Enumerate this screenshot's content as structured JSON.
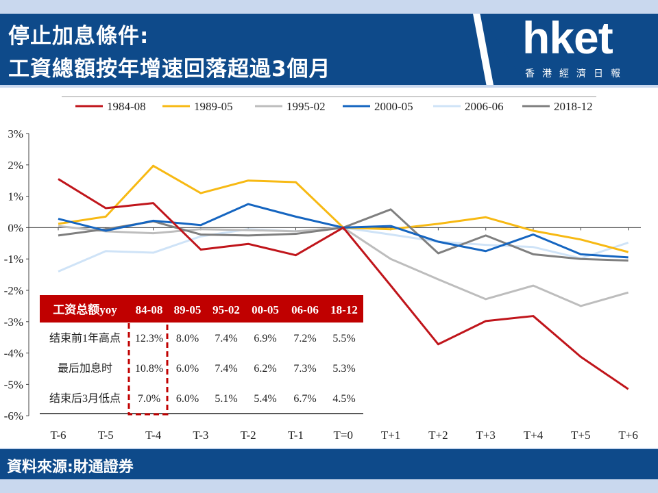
{
  "header": {
    "title_line1": "停止加息條件:",
    "title_line2": "工資總額按年增速回落超過3個月",
    "logo_text": "hket",
    "logo_sub": "香港經濟日報"
  },
  "footer": {
    "source": "資料來源:財通證券"
  },
  "colors": {
    "banner": "#0e4a8a",
    "table_header": "#c00000"
  },
  "chart_data": {
    "type": "line",
    "categories": [
      "T-6",
      "T-5",
      "T-4",
      "T-3",
      "T-2",
      "T-1",
      "T=0",
      "T+1",
      "T+2",
      "T+3",
      "T+4",
      "T+5",
      "T+6"
    ],
    "y_ticks": [
      "3%",
      "2%",
      "1%",
      "0%",
      "-1%",
      "-2%",
      "-3%",
      "-4%",
      "-5%",
      "-6%"
    ],
    "ylim": [
      -6,
      3
    ],
    "legend_position": "top",
    "grid": false,
    "series": [
      {
        "name": "1984-08",
        "color": "#c0151b",
        "values": [
          1.55,
          0.62,
          0.78,
          -0.7,
          -0.52,
          -0.88,
          0.0,
          -1.85,
          -3.72,
          -2.98,
          -2.82,
          -4.12,
          -5.15
        ]
      },
      {
        "name": "1989-05",
        "color": "#f7b913",
        "values": [
          0.12,
          0.35,
          1.97,
          1.1,
          1.5,
          1.45,
          0.0,
          -0.05,
          0.12,
          0.33,
          -0.1,
          -0.38,
          -0.78
        ]
      },
      {
        "name": "1995-02",
        "color": "#bdbdbd",
        "values": [
          0.05,
          -0.12,
          -0.18,
          -0.05,
          -0.08,
          -0.12,
          0.0,
          -1.0,
          -1.65,
          -2.28,
          -1.85,
          -2.5,
          -2.07
        ]
      },
      {
        "name": "2000-05",
        "color": "#1565c0",
        "values": [
          0.28,
          -0.1,
          0.22,
          0.08,
          0.75,
          0.35,
          0.0,
          0.05,
          -0.45,
          -0.75,
          -0.22,
          -0.85,
          -0.95
        ]
      },
      {
        "name": "2006-06",
        "color": "#cfe3f7",
        "values": [
          -1.4,
          -0.75,
          -0.8,
          -0.28,
          -0.05,
          -0.12,
          0.0,
          -0.22,
          -0.45,
          -0.55,
          -0.62,
          -0.98,
          -0.48
        ]
      },
      {
        "name": "2018-12",
        "color": "#7f7f7f",
        "values": [
          -0.25,
          -0.05,
          0.2,
          -0.22,
          -0.25,
          -0.2,
          0.0,
          0.58,
          -0.82,
          -0.25,
          -0.85,
          -1.0,
          -1.05
        ]
      }
    ],
    "table": {
      "header": [
        "工资总额yoy",
        "84-08",
        "89-05",
        "95-02",
        "00-05",
        "06-06",
        "18-12"
      ],
      "rows": [
        [
          "结束前1年高点",
          "12.3%",
          "8.0%",
          "7.4%",
          "6.9%",
          "7.2%",
          "5.5%"
        ],
        [
          "最后加息时",
          "10.8%",
          "6.0%",
          "7.4%",
          "6.2%",
          "7.3%",
          "5.3%"
        ],
        [
          "结束后3月低点",
          "7.0%",
          "6.0%",
          "5.1%",
          "5.4%",
          "6.7%",
          "4.5%"
        ]
      ]
    }
  }
}
